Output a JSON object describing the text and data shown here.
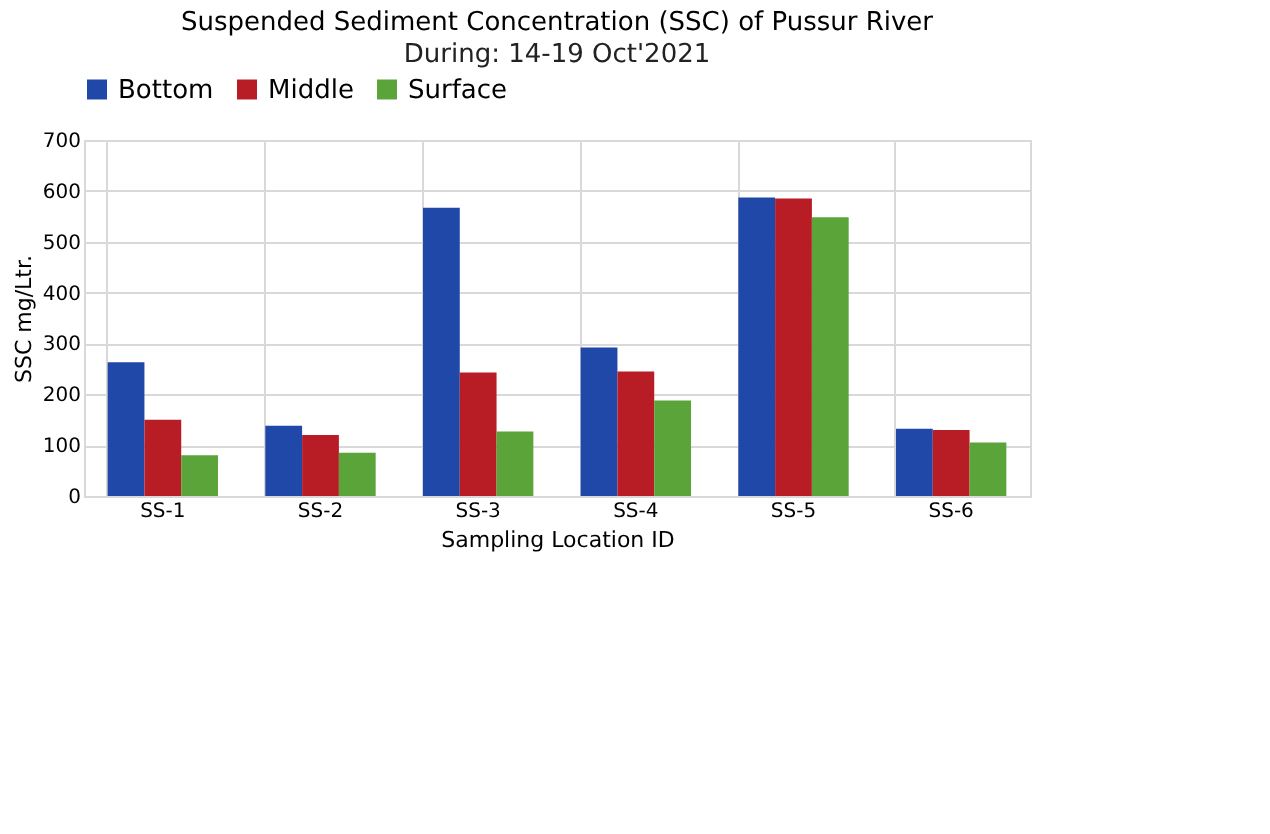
{
  "chart_data": {
    "type": "bar",
    "title": "Suspended Sediment Concentration (SSC) of Pussur River",
    "subtitle": "During: 14-19 Oct'2021",
    "xlabel": "Sampling Location ID",
    "ylabel": "SSC mg/Ltr.",
    "categories": [
      "SS-1",
      "SS-2",
      "SS-3",
      "SS-4",
      "SS-5",
      "SS-6"
    ],
    "series": [
      {
        "name": "Bottom",
        "color": "#1f48a8",
        "values": [
          263,
          138,
          567,
          292,
          587,
          132
        ]
      },
      {
        "name": "Middle",
        "color": "#b81c24",
        "values": [
          150,
          120,
          243,
          245,
          585,
          130
        ]
      },
      {
        "name": "Surface",
        "color": "#5aa43a",
        "values": [
          80,
          85,
          127,
          188,
          548,
          105
        ]
      }
    ],
    "ylim": [
      0,
      700
    ],
    "yticks": [
      0,
      100,
      200,
      300,
      400,
      500,
      600,
      700
    ],
    "grid": true,
    "legend": "top"
  }
}
